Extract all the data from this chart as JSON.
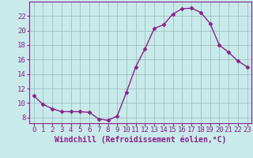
{
  "x": [
    0,
    1,
    2,
    3,
    4,
    5,
    6,
    7,
    8,
    9,
    10,
    11,
    12,
    13,
    14,
    15,
    16,
    17,
    18,
    19,
    20,
    21,
    22,
    23
  ],
  "y": [
    11.0,
    9.8,
    9.2,
    8.8,
    8.8,
    8.8,
    8.7,
    7.8,
    7.6,
    8.2,
    11.5,
    15.0,
    17.5,
    20.3,
    20.8,
    22.3,
    23.0,
    23.1,
    22.5,
    21.0,
    18.0,
    17.0,
    15.8,
    15.0
  ],
  "line_color": "#882288",
  "marker": "D",
  "marker_size": 2.5,
  "xlabel": "Windchill (Refroidissement éolien,°C)",
  "xlabel_fontsize": 7,
  "ylabel_ticks": [
    8,
    10,
    12,
    14,
    16,
    18,
    20,
    22
  ],
  "xtick_labels": [
    "0",
    "1",
    "2",
    "3",
    "4",
    "5",
    "6",
    "7",
    "8",
    "9",
    "10",
    "11",
    "12",
    "13",
    "14",
    "15",
    "16",
    "17",
    "18",
    "19",
    "20",
    "21",
    "22",
    "23"
  ],
  "ylim": [
    7.2,
    24.0
  ],
  "xlim": [
    -0.5,
    23.5
  ],
  "background_color": "#c8eaea",
  "grid_color": "#9ab8b8",
  "tick_fontsize": 6.5,
  "linewidth": 1.0
}
